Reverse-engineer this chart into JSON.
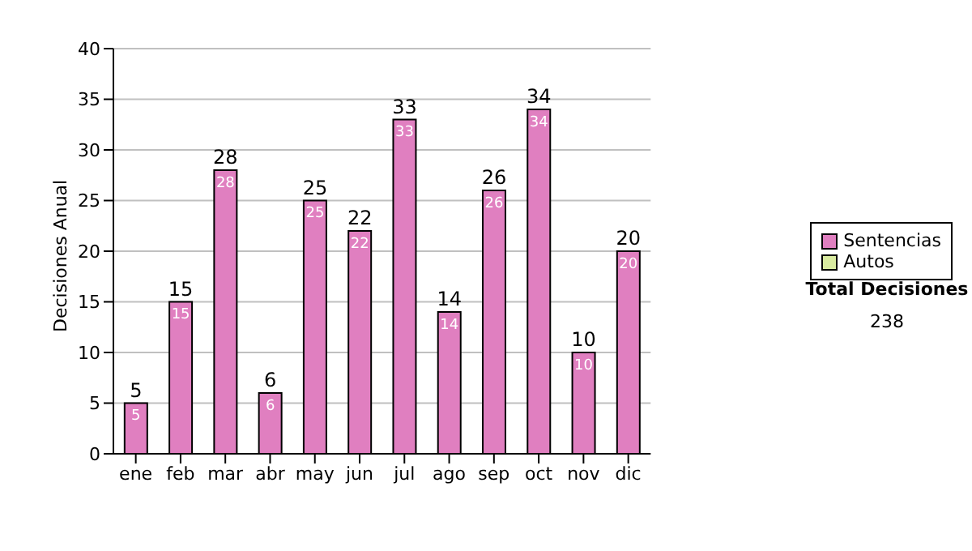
{
  "chart_data": {
    "type": "bar",
    "ylabel": "Decisiones Anual",
    "categories": [
      "ene",
      "feb",
      "mar",
      "abr",
      "may",
      "jun",
      "jul",
      "ago",
      "sep",
      "oct",
      "nov",
      "dic"
    ],
    "series": [
      {
        "name": "Sentencias",
        "color": "#e07fc0",
        "values": [
          5,
          15,
          28,
          6,
          25,
          22,
          33,
          14,
          26,
          34,
          10,
          20
        ]
      },
      {
        "name": "Autos",
        "color": "#d9eba0",
        "values": [
          null,
          null,
          null,
          null,
          null,
          null,
          null,
          null,
          null,
          null,
          null,
          null
        ]
      }
    ],
    "stacked": true,
    "totals": [
      "5",
      "15",
      "28",
      "6",
      "25",
      "22",
      "33",
      "14",
      "26",
      "34",
      "10",
      "20"
    ],
    "data_labels": true,
    "ylim": [
      0,
      40
    ],
    "yticks": [
      0,
      5,
      10,
      15,
      20,
      25,
      30,
      35,
      40
    ],
    "grid": "y",
    "legend": "right",
    "annotations": [
      "Total Decisiones",
      "238"
    ]
  }
}
